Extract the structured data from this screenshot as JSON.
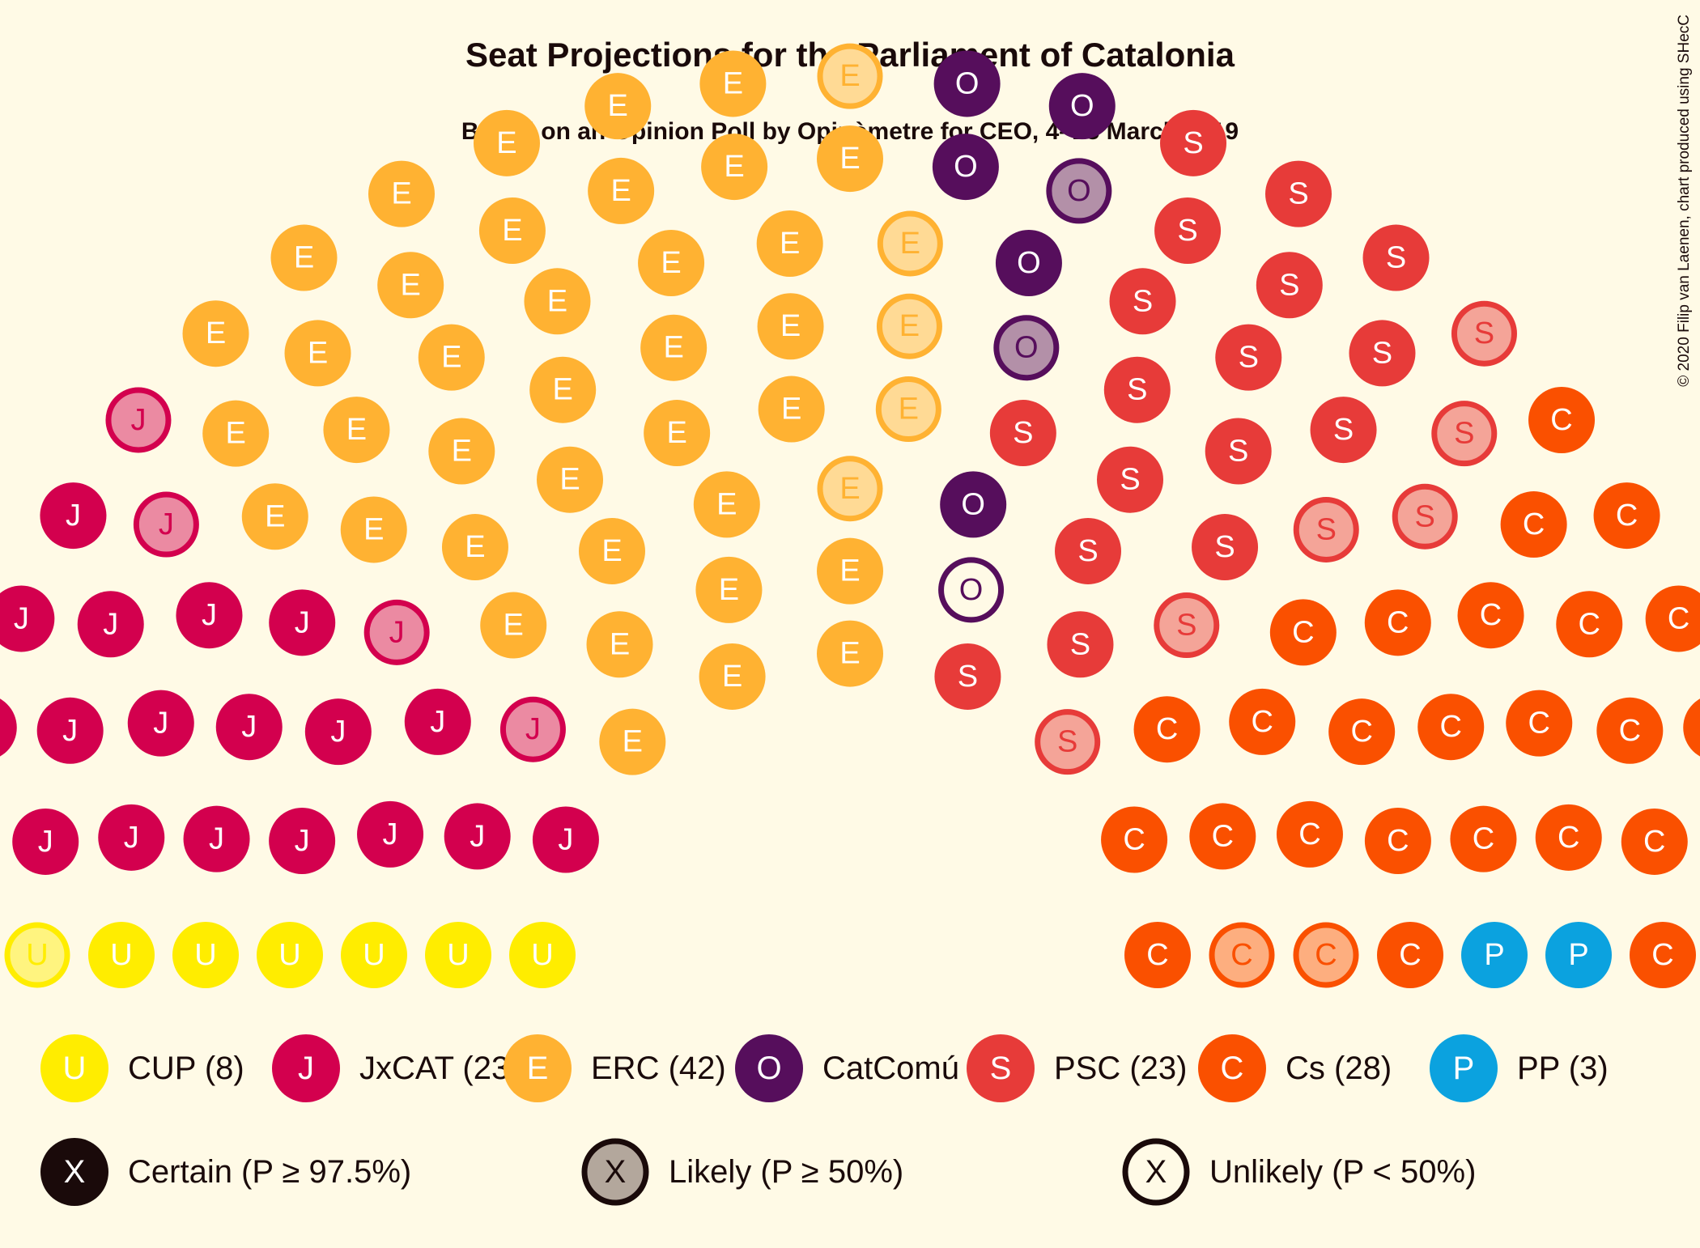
{
  "chart_data": {
    "type": "parliament",
    "title": "Seat Projections for the Parliament of Catalonia",
    "subtitle": "Based on an Opinion Poll by Opinòmetre for CEO, 4–25 March 2019",
    "credit": "© 2020 Filip van Laenen, chart produced using SHecC",
    "total_seats": 135,
    "parties": [
      {
        "id": "U",
        "name": "CUP",
        "seats": 8,
        "label": "CUP (8)",
        "color": "#FFED00",
        "certainty": {
          "certain": 6,
          "likely": 1,
          "unlikely": 1
        }
      },
      {
        "id": "J",
        "name": "JxCAT",
        "seats": 23,
        "label": "JxCAT (23)",
        "color": "#D3004E",
        "certainty": {
          "certain": 19,
          "likely": 4,
          "unlikely": 0
        }
      },
      {
        "id": "E",
        "name": "ERC",
        "seats": 42,
        "label": "ERC (42)",
        "color": "#FFB232",
        "certainty": {
          "certain": 37,
          "likely": 5,
          "unlikely": 0
        }
      },
      {
        "id": "O",
        "name": "CatComú",
        "seats": 8,
        "label": "CatComú (8)",
        "color": "#560E5C",
        "certainty": {
          "certain": 5,
          "likely": 2,
          "unlikely": 1
        }
      },
      {
        "id": "S",
        "name": "PSC",
        "seats": 23,
        "label": "PSC (23)",
        "color": "#E73B39",
        "certainty": {
          "certain": 17,
          "likely": 6,
          "unlikely": 0
        }
      },
      {
        "id": "C",
        "name": "Cs",
        "seats": 28,
        "label": "Cs (28)",
        "color": "#FA5000",
        "certainty": {
          "certain": 26,
          "likely": 2,
          "unlikely": 0
        }
      },
      {
        "id": "P",
        "name": "PP",
        "seats": 3,
        "label": "PP (3)",
        "color": "#0BA2DF",
        "certainty": {
          "certain": 2,
          "likely": 1,
          "unlikely": 0
        }
      }
    ],
    "certainty_legend": [
      {
        "key": "certain",
        "symbol": "X",
        "label": "Certain (P ≥ 97.5%)"
      },
      {
        "key": "likely",
        "symbol": "X",
        "label": "Likely (P ≥ 50%)"
      },
      {
        "key": "unlikely",
        "symbol": "X",
        "label": "Unlikely (P < 50%)"
      }
    ]
  }
}
